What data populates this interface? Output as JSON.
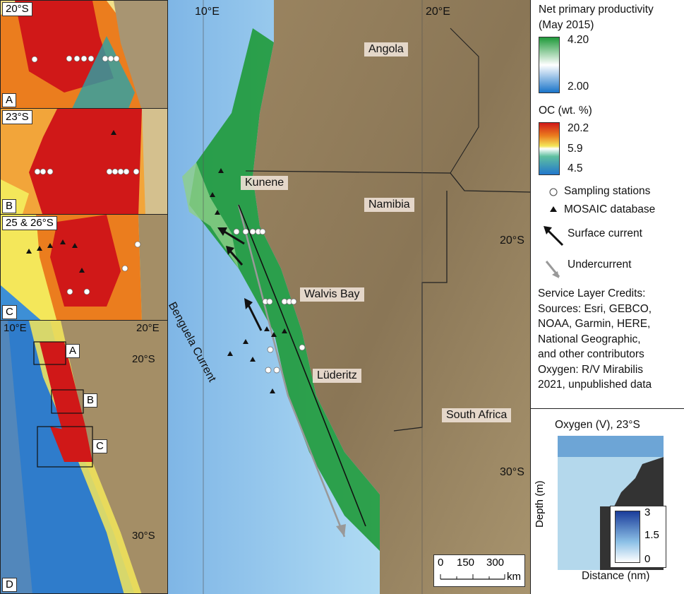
{
  "panels": {
    "A": {
      "letter": "A",
      "lat": "20°S"
    },
    "B": {
      "letter": "B",
      "lat": "23°S"
    },
    "C": {
      "letter": "C",
      "lat": "25 & 26°S"
    },
    "D": {
      "letter": "D",
      "lon": "10°E",
      "lon2": "20°E",
      "lat1": "20°S",
      "lat2": "30°S",
      "boxes": [
        "A",
        "B",
        "C"
      ]
    }
  },
  "main_map": {
    "lon_labels": [
      "10°E",
      "20°E"
    ],
    "lat_labels": [
      "20°S",
      "30°S"
    ],
    "places": [
      "Angola",
      "Kunene",
      "Namibia",
      "Walvis Bay",
      "Lüderitz",
      "South Africa"
    ],
    "current_label": "Benguela Current",
    "scale": {
      "ticks": [
        "0",
        "150",
        "300"
      ],
      "unit": "km"
    }
  },
  "legend": {
    "npp_title_1": "Net primary productivity",
    "npp_title_2": "(May 2015)",
    "npp_max": "4.20",
    "npp_min": "2.00",
    "oc_title": "OC (wt. %)",
    "oc_max": "20.2",
    "oc_mid": "5.9",
    "oc_min": "4.5",
    "sampling": "Sampling stations",
    "mosaic": "MOSAIC database",
    "surface": "Surface current",
    "under": "Undercurrent",
    "credits": [
      "Service Layer Credits:",
      "Sources: Esri, GEBCO,",
      "NOAA, Garmin, HERE,",
      "National Geographic,",
      "and other contributors",
      "Oxygen: R/V Mirabilis",
      "2021, unpublished data"
    ],
    "colors": {
      "npp_high": "#1f9a3a",
      "npp_low": "#1a74c9",
      "oc_high": "#d01818",
      "oc_low": "#2277cc"
    }
  },
  "oxygen": {
    "title": "Oxygen (V), 23°S",
    "ylabel": "Depth (m)",
    "xlabel": "Distance (nm)",
    "scale": [
      "3",
      "1.5",
      "0"
    ]
  }
}
